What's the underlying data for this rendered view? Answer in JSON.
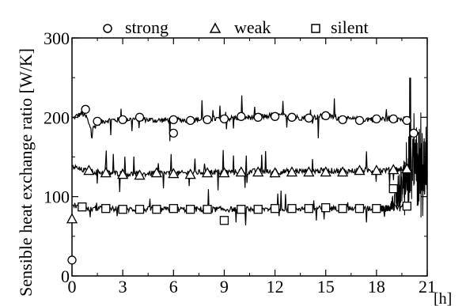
{
  "chart_data": {
    "type": "line",
    "title": "",
    "xlabel": "[h]",
    "ylabel": "Sensible heat exchange ratio [W/K]",
    "xlim": [
      0,
      21
    ],
    "ylim": [
      0,
      300
    ],
    "xticks": [
      "0",
      "3",
      "6",
      "9",
      "12",
      "15",
      "18",
      "21"
    ],
    "xtick_values": [
      0,
      3,
      6,
      9,
      12,
      15,
      18,
      21
    ],
    "yticks": [
      "0",
      "100",
      "200",
      "300"
    ],
    "ytick_values": [
      0,
      100,
      200,
      300
    ],
    "grid": false,
    "legend_position": "top",
    "series": [
      {
        "name": "strong",
        "marker": "circle",
        "line": [
          [
            0.05,
            198
          ],
          [
            0.3,
            202
          ],
          [
            0.6,
            205
          ],
          [
            0.9,
            199
          ],
          [
            1.0,
            190
          ],
          [
            1.2,
            185
          ],
          [
            1.5,
            192
          ],
          [
            2.0,
            196
          ],
          [
            3.0,
            197
          ],
          [
            4.0,
            198
          ],
          [
            5.0,
            196
          ],
          [
            6.0,
            197
          ],
          [
            7.0,
            196
          ],
          [
            8.0,
            198
          ],
          [
            9.0,
            198
          ],
          [
            10.0,
            200
          ],
          [
            11.0,
            200
          ],
          [
            12.0,
            203
          ],
          [
            13.0,
            200
          ],
          [
            14.0,
            199
          ],
          [
            15.0,
            202
          ],
          [
            16.0,
            198
          ],
          [
            17.0,
            197
          ],
          [
            18.0,
            198
          ],
          [
            19.0,
            198
          ],
          [
            19.8,
            197
          ]
        ],
        "markers": [
          [
            0,
            20
          ],
          [
            0.8,
            210
          ],
          [
            1.5,
            195
          ],
          [
            3,
            197
          ],
          [
            4,
            200
          ],
          [
            6,
            180
          ],
          [
            6,
            197
          ],
          [
            7,
            196
          ],
          [
            8,
            197
          ],
          [
            9,
            198
          ],
          [
            10,
            201
          ],
          [
            11,
            200
          ],
          [
            12,
            201
          ],
          [
            13,
            200
          ],
          [
            14,
            199
          ],
          [
            15,
            202
          ],
          [
            16,
            197
          ],
          [
            17,
            196
          ],
          [
            18,
            198
          ],
          [
            19,
            198
          ],
          [
            19.8,
            196
          ],
          [
            20.2,
            180
          ]
        ]
      },
      {
        "name": "weak",
        "marker": "triangle",
        "line": [
          [
            0.05,
            138
          ],
          [
            0.5,
            134
          ],
          [
            1.0,
            132
          ],
          [
            2.0,
            130
          ],
          [
            3.0,
            129
          ],
          [
            4.0,
            128
          ],
          [
            5.0,
            130
          ],
          [
            6.0,
            129
          ],
          [
            7.0,
            130
          ],
          [
            8.0,
            131
          ],
          [
            9.0,
            131
          ],
          [
            10.0,
            131
          ],
          [
            11.0,
            132
          ],
          [
            12.0,
            131
          ],
          [
            13.0,
            132
          ],
          [
            14.0,
            132
          ],
          [
            15.0,
            133
          ],
          [
            16.0,
            132
          ],
          [
            17.0,
            133
          ],
          [
            18.0,
            133
          ],
          [
            19.0,
            134
          ],
          [
            19.8,
            135
          ]
        ],
        "markers": [
          [
            0,
            72
          ],
          [
            1,
            133
          ],
          [
            2,
            130
          ],
          [
            3,
            128
          ],
          [
            4,
            127
          ],
          [
            5,
            130
          ],
          [
            6,
            129
          ],
          [
            7,
            128
          ],
          [
            8,
            130
          ],
          [
            9,
            130
          ],
          [
            10,
            131
          ],
          [
            11,
            131
          ],
          [
            12,
            130
          ],
          [
            13,
            131
          ],
          [
            14,
            131
          ],
          [
            15,
            131
          ],
          [
            16,
            131
          ],
          [
            17,
            133
          ],
          [
            18,
            133
          ],
          [
            19,
            134
          ],
          [
            19.8,
            135
          ]
        ]
      },
      {
        "name": "silent",
        "marker": "square",
        "line": [
          [
            0.05,
            90
          ],
          [
            0.5,
            86
          ],
          [
            1.0,
            84
          ],
          [
            2.0,
            85
          ],
          [
            3.0,
            84
          ],
          [
            4.0,
            84
          ],
          [
            5.0,
            84
          ],
          [
            6.0,
            84
          ],
          [
            7.0,
            84
          ],
          [
            8.0,
            84
          ],
          [
            9.0,
            84
          ],
          [
            10.0,
            84
          ],
          [
            11.0,
            84
          ],
          [
            12.0,
            85
          ],
          [
            13.0,
            85
          ],
          [
            14.0,
            85
          ],
          [
            15.0,
            85
          ],
          [
            16.0,
            85
          ],
          [
            17.0,
            85
          ],
          [
            18.0,
            85
          ],
          [
            18.5,
            85
          ],
          [
            19.0,
            88
          ],
          [
            19.8,
            86
          ]
        ],
        "markers": [
          [
            0.6,
            87
          ],
          [
            2,
            85
          ],
          [
            3,
            84
          ],
          [
            4,
            84
          ],
          [
            5,
            84
          ],
          [
            6,
            85
          ],
          [
            7,
            84
          ],
          [
            8,
            84
          ],
          [
            9,
            70
          ],
          [
            10,
            84
          ],
          [
            11,
            84
          ],
          [
            12,
            85
          ],
          [
            13,
            85
          ],
          [
            14,
            85
          ],
          [
            15,
            86
          ],
          [
            16,
            85
          ],
          [
            17,
            85
          ],
          [
            18,
            85
          ],
          [
            19,
            110
          ],
          [
            19.8,
            88
          ]
        ]
      }
    ],
    "noise_tail": {
      "x_start": 18.0,
      "x_end": 21.0,
      "y_min": 40,
      "y_max": 250
    }
  },
  "legend": {
    "strong": "strong",
    "weak": "weak",
    "silent": "silent"
  },
  "colors": {
    "line": "#000000",
    "background": "#ffffff"
  }
}
